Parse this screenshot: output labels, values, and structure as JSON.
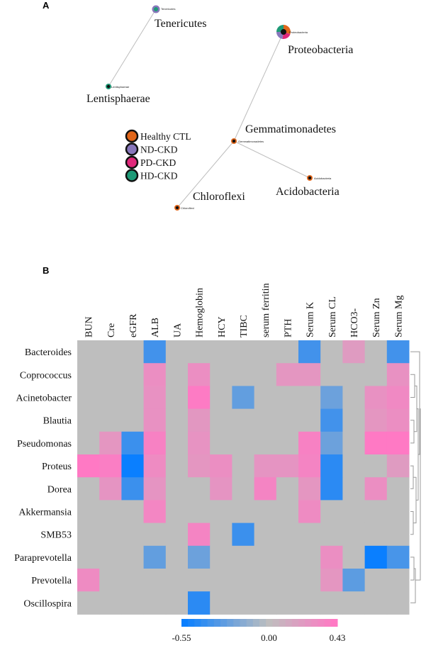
{
  "panel_a": {
    "label": "A",
    "legend": [
      {
        "label": "Healthy CTL",
        "color": "#e1661a"
      },
      {
        "label": "ND-CKD",
        "color": "#8877bb"
      },
      {
        "label": "PD-CKD",
        "color": "#e0287a"
      },
      {
        "label": "HD-CKD",
        "color": "#1e9a77"
      }
    ],
    "nodes": [
      {
        "id": "tenericutes",
        "label": "Tenericutes",
        "small_label": "Tenericutes"
      },
      {
        "id": "lentisphaerae",
        "label": "Lentisphaerae",
        "small_label": "Lentisphaerae"
      },
      {
        "id": "proteobacteria",
        "label": "Proteobacteria",
        "small_label": "Proteobacteria"
      },
      {
        "id": "gemmatimonadetes",
        "label": "Gemmatimonadetes",
        "small_label": "Gemmatimonadetes"
      },
      {
        "id": "acidobacteria",
        "label": "Acidobacteria",
        "small_label": "Acidobacteria"
      },
      {
        "id": "chloroflexi",
        "label": "Chloroflexi",
        "small_label": "Chloroflexi"
      }
    ],
    "edges": [
      [
        "tenericutes",
        "lentisphaerae"
      ],
      [
        "proteobacteria",
        "gemmatimonadetes"
      ],
      [
        "gemmatimonadetes",
        "acidobacteria"
      ],
      [
        "gemmatimonadetes",
        "chloroflexi"
      ]
    ]
  },
  "panel_b": {
    "label": "B",
    "chart_data": {
      "type": "heatmap",
      "columns": [
        "BUN",
        "Cre",
        "eGFR",
        "ALB",
        "UA",
        "Hemoglobin",
        "HCY",
        "TIBC",
        "serum ferritin",
        "PTH",
        "Serum K",
        "Serum CL",
        "HCO3-",
        "Serum Zn",
        "Serum Mg"
      ],
      "rows": [
        "Bacteroides",
        "Coprococcus",
        "Acinetobacter",
        "Blautia",
        "Pseudomonas",
        "Proteus",
        "Dorea",
        "Akkermansia",
        "SMB53",
        "Paraprevotella",
        "Prevotella",
        "Oscillospira"
      ],
      "values": [
        [
          0,
          0,
          0,
          -0.38,
          0,
          0,
          0,
          0,
          0,
          0,
          -0.38,
          0,
          0.22,
          0,
          -0.38
        ],
        [
          0,
          0,
          0,
          0.3,
          0,
          0.3,
          0,
          0,
          0,
          0.25,
          0.25,
          0,
          0,
          0,
          0.28
        ],
        [
          0,
          0,
          0,
          0.28,
          0,
          0.42,
          0,
          -0.28,
          0,
          0,
          0,
          -0.25,
          0,
          0.28,
          0.33
        ],
        [
          0,
          0,
          0,
          0.28,
          0,
          0.24,
          0,
          0,
          0,
          0,
          0,
          -0.38,
          0,
          0.25,
          0.3
        ],
        [
          0,
          0.25,
          -0.4,
          0.38,
          0,
          0.27,
          0,
          0,
          0,
          0,
          0.38,
          -0.25,
          0,
          0.43,
          0.43
        ],
        [
          0.43,
          0.4,
          -0.55,
          0.32,
          0,
          0.25,
          0.3,
          0,
          0.26,
          0.26,
          0.36,
          -0.45,
          0,
          0,
          0.22
        ],
        [
          0,
          0.26,
          -0.4,
          0.26,
          0,
          0,
          0.26,
          0,
          0.36,
          0,
          0.25,
          -0.45,
          0,
          0.3,
          0
        ],
        [
          0,
          0,
          0,
          0.35,
          0,
          0,
          0,
          0,
          0,
          0,
          0.32,
          0,
          0,
          0,
          0
        ],
        [
          0,
          0,
          0,
          0,
          0,
          0.36,
          0,
          -0.4,
          0,
          0,
          0,
          0,
          0,
          0,
          0
        ],
        [
          0,
          0,
          0,
          -0.28,
          0,
          -0.25,
          0,
          0,
          0,
          0,
          0,
          0.3,
          0,
          -0.55,
          -0.36
        ],
        [
          0.32,
          0,
          0,
          0,
          0,
          0,
          0,
          0,
          0,
          0,
          0,
          0.25,
          -0.3,
          0,
          0
        ],
        [
          0,
          0,
          0,
          0,
          0,
          -0.45,
          0,
          0,
          0,
          0,
          0,
          0,
          0,
          0,
          0
        ]
      ],
      "scale": {
        "min": -0.55,
        "mid": 0.0,
        "max": 0.43,
        "min_label": "-0.55",
        "mid_label": "0.00",
        "max_label": "0.43"
      },
      "colors": {
        "negative": "#0a7fff",
        "neutral": "#bebebe",
        "positive": "#ff79c4"
      },
      "dendrogram_side": "right"
    }
  }
}
